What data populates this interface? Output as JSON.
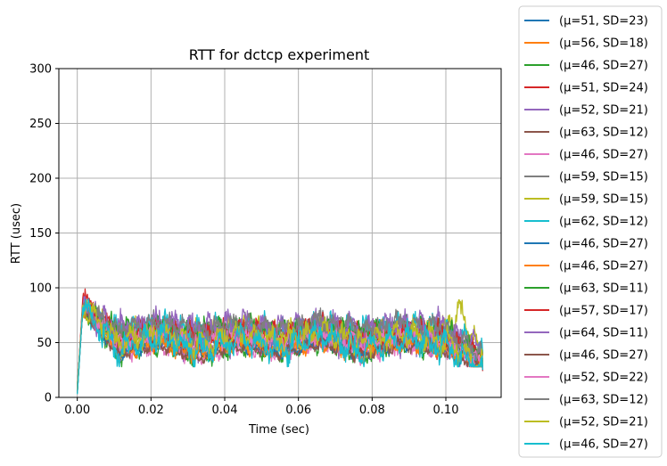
{
  "chart_data": {
    "type": "line",
    "title": "RTT for dctcp experiment",
    "xlabel": "Time (sec)",
    "ylabel": "RTT (usec)",
    "xlim": [
      -0.005,
      0.115
    ],
    "ylim": [
      0,
      300
    ],
    "xticks": [
      0.0,
      0.02,
      0.04,
      0.06,
      0.08,
      0.1
    ],
    "xtick_labels": [
      "0.00",
      "0.02",
      "0.04",
      "0.06",
      "0.08",
      "0.10"
    ],
    "yticks": [
      0,
      50,
      100,
      150,
      200,
      250,
      300
    ],
    "ytick_labels": [
      "0",
      "50",
      "100",
      "150",
      "200",
      "250",
      "300"
    ],
    "grid": true,
    "legend_position": "outside-right",
    "series": [
      {
        "name": "(μ=51, SD=23)",
        "color": "#1f77b4",
        "x": [
          0.0,
          0.0015,
          0.011,
          0.022,
          0.033,
          0.044,
          0.055,
          0.066,
          0.077,
          0.088,
          0.099,
          0.11
        ],
        "y": [
          5,
          88,
          45,
          52,
          48,
          53,
          47,
          52,
          49,
          51,
          50,
          30
        ]
      },
      {
        "name": "(μ=56, SD=18)",
        "color": "#ff7f0e",
        "x": [
          0.0,
          0.0015,
          0.011,
          0.022,
          0.033,
          0.044,
          0.055,
          0.066,
          0.077,
          0.088,
          0.099,
          0.11
        ],
        "y": [
          8,
          86,
          56,
          60,
          52,
          58,
          55,
          60,
          53,
          57,
          56,
          32
        ]
      },
      {
        "name": "(μ=46, SD=27)",
        "color": "#2ca02c",
        "x": [
          0.0,
          0.0015,
          0.011,
          0.022,
          0.033,
          0.044,
          0.055,
          0.066,
          0.077,
          0.088,
          0.099,
          0.11
        ],
        "y": [
          4,
          85,
          38,
          50,
          36,
          48,
          40,
          52,
          38,
          49,
          44,
          28
        ]
      },
      {
        "name": "(μ=51, SD=24)",
        "color": "#d62728",
        "x": [
          0.0,
          0.0015,
          0.011,
          0.022,
          0.033,
          0.044,
          0.055,
          0.066,
          0.077,
          0.088,
          0.099,
          0.11
        ],
        "y": [
          6,
          91,
          48,
          55,
          46,
          54,
          49,
          56,
          47,
          53,
          50,
          24
        ]
      },
      {
        "name": "(μ=52, SD=21)",
        "color": "#9467bd",
        "x": [
          0.0,
          0.0015,
          0.011,
          0.022,
          0.033,
          0.044,
          0.055,
          0.066,
          0.077,
          0.088,
          0.099,
          0.11
        ],
        "y": [
          7,
          84,
          50,
          56,
          49,
          55,
          51,
          56,
          50,
          54,
          52,
          30
        ]
      },
      {
        "name": "(μ=63, SD=12)",
        "color": "#8c564b",
        "x": [
          0.0,
          0.0015,
          0.011,
          0.022,
          0.033,
          0.044,
          0.055,
          0.066,
          0.077,
          0.088,
          0.099,
          0.11
        ],
        "y": [
          10,
          80,
          62,
          66,
          61,
          65,
          62,
          66,
          61,
          65,
          63,
          40
        ]
      },
      {
        "name": "(μ=46, SD=27)",
        "color": "#e377c2",
        "x": [
          0.0,
          0.0015,
          0.011,
          0.022,
          0.033,
          0.044,
          0.055,
          0.066,
          0.077,
          0.088,
          0.099,
          0.11
        ],
        "y": [
          4,
          82,
          40,
          48,
          38,
          47,
          41,
          49,
          39,
          48,
          45,
          28
        ]
      },
      {
        "name": "(μ=59, SD=15)",
        "color": "#7f7f7f",
        "x": [
          0.0,
          0.0015,
          0.011,
          0.022,
          0.033,
          0.044,
          0.055,
          0.066,
          0.077,
          0.088,
          0.099,
          0.11
        ],
        "y": [
          9,
          83,
          58,
          70,
          56,
          68,
          58,
          70,
          57,
          68,
          60,
          36
        ]
      },
      {
        "name": "(μ=59, SD=15)",
        "color": "#bcbd22",
        "x": [
          0.0,
          0.0015,
          0.011,
          0.022,
          0.033,
          0.044,
          0.055,
          0.066,
          0.077,
          0.088,
          0.099,
          0.104,
          0.11
        ],
        "y": [
          9,
          82,
          58,
          62,
          56,
          61,
          58,
          62,
          57,
          61,
          60,
          80,
          36
        ]
      },
      {
        "name": "(μ=62, SD=12)",
        "color": "#17becf",
        "x": [
          0.0,
          0.0015,
          0.011,
          0.022,
          0.033,
          0.044,
          0.055,
          0.066,
          0.077,
          0.088,
          0.099,
          0.11
        ],
        "y": [
          10,
          80,
          61,
          64,
          60,
          63,
          61,
          64,
          60,
          63,
          62,
          40
        ]
      },
      {
        "name": "(μ=46, SD=27)",
        "color": "#1f77b4",
        "x": [
          0.0,
          0.0015,
          0.011,
          0.022,
          0.033,
          0.044,
          0.055,
          0.066,
          0.077,
          0.088,
          0.099,
          0.11
        ],
        "y": [
          4,
          84,
          40,
          50,
          37,
          49,
          41,
          51,
          38,
          50,
          44,
          28
        ]
      },
      {
        "name": "(μ=46, SD=27)",
        "color": "#ff7f0e",
        "x": [
          0.0,
          0.0015,
          0.011,
          0.022,
          0.033,
          0.044,
          0.055,
          0.066,
          0.077,
          0.088,
          0.099,
          0.11
        ],
        "y": [
          4,
          83,
          41,
          49,
          38,
          48,
          42,
          50,
          39,
          49,
          45,
          28
        ]
      },
      {
        "name": "(μ=63, SD=11)",
        "color": "#2ca02c",
        "x": [
          0.0,
          0.0015,
          0.011,
          0.022,
          0.033,
          0.044,
          0.055,
          0.066,
          0.077,
          0.088,
          0.099,
          0.11
        ],
        "y": [
          10,
          79,
          62,
          66,
          61,
          65,
          62,
          66,
          61,
          65,
          63,
          40
        ]
      },
      {
        "name": "(μ=57, SD=17)",
        "color": "#d62728",
        "x": [
          0.0,
          0.0015,
          0.011,
          0.022,
          0.033,
          0.044,
          0.055,
          0.066,
          0.077,
          0.088,
          0.099,
          0.11
        ],
        "y": [
          8,
          85,
          55,
          62,
          54,
          61,
          56,
          62,
          55,
          61,
          57,
          34
        ]
      },
      {
        "name": "(μ=64, SD=11)",
        "color": "#9467bd",
        "x": [
          0.0,
          0.0015,
          0.011,
          0.022,
          0.033,
          0.044,
          0.055,
          0.066,
          0.077,
          0.088,
          0.099,
          0.11
        ],
        "y": [
          10,
          79,
          63,
          67,
          62,
          66,
          63,
          67,
          62,
          66,
          64,
          41
        ]
      },
      {
        "name": "(μ=46, SD=27)",
        "color": "#8c564b",
        "x": [
          0.0,
          0.0015,
          0.011,
          0.022,
          0.033,
          0.044,
          0.055,
          0.066,
          0.077,
          0.088,
          0.099,
          0.11
        ],
        "y": [
          4,
          82,
          40,
          49,
          37,
          48,
          41,
          50,
          38,
          49,
          44,
          28
        ]
      },
      {
        "name": "(μ=52, SD=22)",
        "color": "#e377c2",
        "x": [
          0.0,
          0.0015,
          0.011,
          0.022,
          0.033,
          0.044,
          0.055,
          0.066,
          0.077,
          0.088,
          0.099,
          0.11
        ],
        "y": [
          7,
          84,
          50,
          57,
          48,
          56,
          51,
          57,
          49,
          56,
          52,
          30
        ]
      },
      {
        "name": "(μ=63, SD=12)",
        "color": "#7f7f7f",
        "x": [
          0.0,
          0.0015,
          0.011,
          0.022,
          0.033,
          0.044,
          0.055,
          0.066,
          0.077,
          0.088,
          0.099,
          0.11
        ],
        "y": [
          10,
          80,
          62,
          68,
          60,
          67,
          62,
          68,
          61,
          67,
          63,
          40
        ]
      },
      {
        "name": "(μ=52, SD=21)",
        "color": "#bcbd22",
        "x": [
          0.0,
          0.0015,
          0.011,
          0.022,
          0.033,
          0.044,
          0.055,
          0.066,
          0.077,
          0.088,
          0.099,
          0.11
        ],
        "y": [
          7,
          84,
          50,
          60,
          48,
          58,
          51,
          60,
          49,
          58,
          52,
          30
        ]
      },
      {
        "name": "(μ=46, SD=27)",
        "color": "#17becf",
        "x": [
          0.0,
          0.0015,
          0.011,
          0.022,
          0.033,
          0.044,
          0.055,
          0.066,
          0.077,
          0.088,
          0.099,
          0.11
        ],
        "y": [
          3,
          82,
          42,
          56,
          40,
          55,
          43,
          56,
          41,
          55,
          46,
          25
        ]
      }
    ]
  }
}
